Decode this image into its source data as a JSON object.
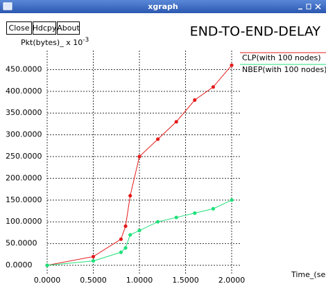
{
  "window": {
    "title": "xgraph",
    "buttons": [
      "Close",
      "Hdcpy",
      "About"
    ]
  },
  "chart_data": {
    "type": "line",
    "title": "END-TO-END-DELAY",
    "ylabel": "Pkt(bytes)_ x 10",
    "ylabel_exponent": "-3",
    "xlabel": "Time_(sec)",
    "x": [
      0,
      0.5,
      0.8,
      0.85,
      0.9,
      1.0,
      1.2,
      1.4,
      1.6,
      1.8,
      2.0
    ],
    "series": [
      {
        "name": "CLP(with 100 nodes)",
        "color": "#e41a1a",
        "values": [
          0,
          20,
          60,
          90,
          160,
          250,
          290,
          330,
          380,
          410,
          460
        ]
      },
      {
        "name": "NBEP(with 100 nodes)",
        "color": "#1fe07a",
        "values": [
          0,
          10,
          30,
          40,
          70,
          80,
          100,
          110,
          120,
          130,
          150
        ]
      }
    ],
    "xlim": [
      0,
      2
    ],
    "ylim": [
      0,
      480
    ],
    "xticks": [
      {
        "value": 0,
        "label": "0.0000"
      },
      {
        "value": 0.5,
        "label": "0.5000"
      },
      {
        "value": 1,
        "label": "1.0000"
      },
      {
        "value": 1.5,
        "label": "1.5000"
      },
      {
        "value": 2,
        "label": "2.0000"
      }
    ],
    "yticks": [
      {
        "value": 0,
        "label": "0.0000"
      },
      {
        "value": 50,
        "label": "50.0000"
      },
      {
        "value": 100,
        "label": "100.0000"
      },
      {
        "value": 150,
        "label": "150.0000"
      },
      {
        "value": 200,
        "label": "200.0000"
      },
      {
        "value": 250,
        "label": "250.0000"
      },
      {
        "value": 300,
        "label": "300.0000"
      },
      {
        "value": 350,
        "label": "350.0000"
      },
      {
        "value": 400,
        "label": "400.0000"
      },
      {
        "value": 450,
        "label": "450.0000"
      }
    ],
    "grid": true,
    "legend": "right"
  }
}
